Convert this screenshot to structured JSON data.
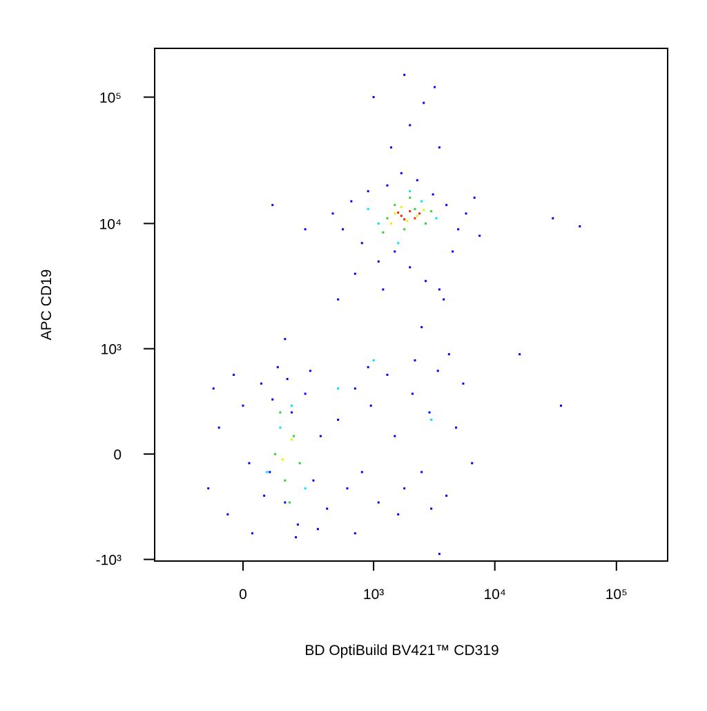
{
  "chart_data": {
    "type": "scatter",
    "xlabel": "BD OptiBuild BV421™ CD319",
    "ylabel": "APC CD19",
    "xscale": "biexponential",
    "yscale": "biexponential",
    "xlim": [
      -437,
      263800
    ],
    "ylim": [
      -1032,
      243000
    ],
    "xticks": [
      0,
      {
        "value": 1000,
        "label": "10³"
      },
      {
        "value": 10000,
        "label": "10⁴"
      },
      {
        "value": 100000,
        "label": "10⁵"
      }
    ],
    "yticks": [
      {
        "value": -1000,
        "label": "-10³"
      },
      0,
      {
        "value": 1000,
        "label": "10³"
      },
      {
        "value": 10000,
        "label": "10⁴"
      },
      {
        "value": 100000,
        "label": "10⁵"
      }
    ],
    "series": [
      {
        "color": "#0000ff",
        "x": [
          -120,
          -80,
          -50,
          0,
          30,
          60,
          90,
          120,
          150,
          180,
          210,
          250,
          300,
          350,
          400,
          -30,
          20,
          100,
          200,
          280,
          -100,
          330,
          70,
          160,
          500,
          600,
          700,
          800,
          950,
          1100,
          1300,
          1500,
          1800,
          2100,
          2500,
          2900,
          3400,
          4000,
          4800,
          5500,
          6500,
          900,
          1600,
          3000,
          4200,
          2200,
          450,
          550,
          650,
          800,
          900,
          1100,
          1300,
          1500,
          1700,
          2000,
          2300,
          2700,
          3100,
          3500,
          4000,
          4500,
          5000,
          5800,
          6800,
          7500,
          3800,
          1200,
          250,
          100,
          2000,
          2600,
          1800,
          3200,
          1400,
          30000,
          50000,
          16000,
          35000,
          150,
          500,
          2500,
          700,
          3500,
          1000,
          700,
          3500
        ],
        "y": [
          -200,
          150,
          -400,
          300,
          -600,
          500,
          -100,
          700,
          -300,
          250,
          -500,
          400,
          -150,
          100,
          -350,
          600,
          -50,
          350,
          -650,
          650,
          450,
          -550,
          -250,
          550,
          200,
          -200,
          450,
          -100,
          300,
          -300,
          600,
          100,
          -200,
          400,
          -100,
          250,
          650,
          -250,
          150,
          500,
          -50,
          700,
          -400,
          -350,
          900,
          800,
          12000,
          9000,
          15000,
          7000,
          18000,
          5000,
          20000,
          6000,
          25000,
          4500,
          22000,
          3500,
          17000,
          3000,
          14000,
          6000,
          9000,
          12000,
          16000,
          8000,
          2500,
          3000,
          9000,
          14000,
          60000,
          90000,
          150000,
          120000,
          40000,
          11000,
          9500,
          900,
          300,
          1200,
          2500,
          1500,
          4000,
          40000,
          100000,
          -600,
          -900
        ]
      },
      {
        "color": "#00e0ff",
        "x": [
          80,
          180,
          250,
          130,
          1100,
          2500,
          1600,
          3300,
          900,
          2000,
          500,
          3000,
          1000
        ],
        "y": [
          -100,
          300,
          -200,
          150,
          10000,
          15000,
          7000,
          11000,
          13000,
          18000,
          450,
          200,
          800
        ]
      },
      {
        "color": "#30d030",
        "x": [
          110,
          150,
          190,
          220,
          130,
          170,
          1300,
          1800,
          2200,
          1500,
          2700,
          1200,
          2000,
          3000
        ],
        "y": [
          0,
          -150,
          100,
          -50,
          250,
          -300,
          11000,
          9000,
          13000,
          14000,
          10000,
          8500,
          16000,
          12500
        ]
      },
      {
        "color": "#f0f000",
        "x": [
          140,
          180,
          1500,
          1900,
          2300,
          1700,
          2600,
          1400
        ],
        "y": [
          -30,
          80,
          12000,
          10500,
          11500,
          13500,
          12800,
          10000
        ]
      },
      {
        "color": "#ff2000",
        "x": [
          1700,
          2000,
          1800,
          2200,
          1600,
          2400
        ],
        "y": [
          11500,
          12500,
          10800,
          11000,
          12200,
          12000
        ]
      }
    ]
  }
}
